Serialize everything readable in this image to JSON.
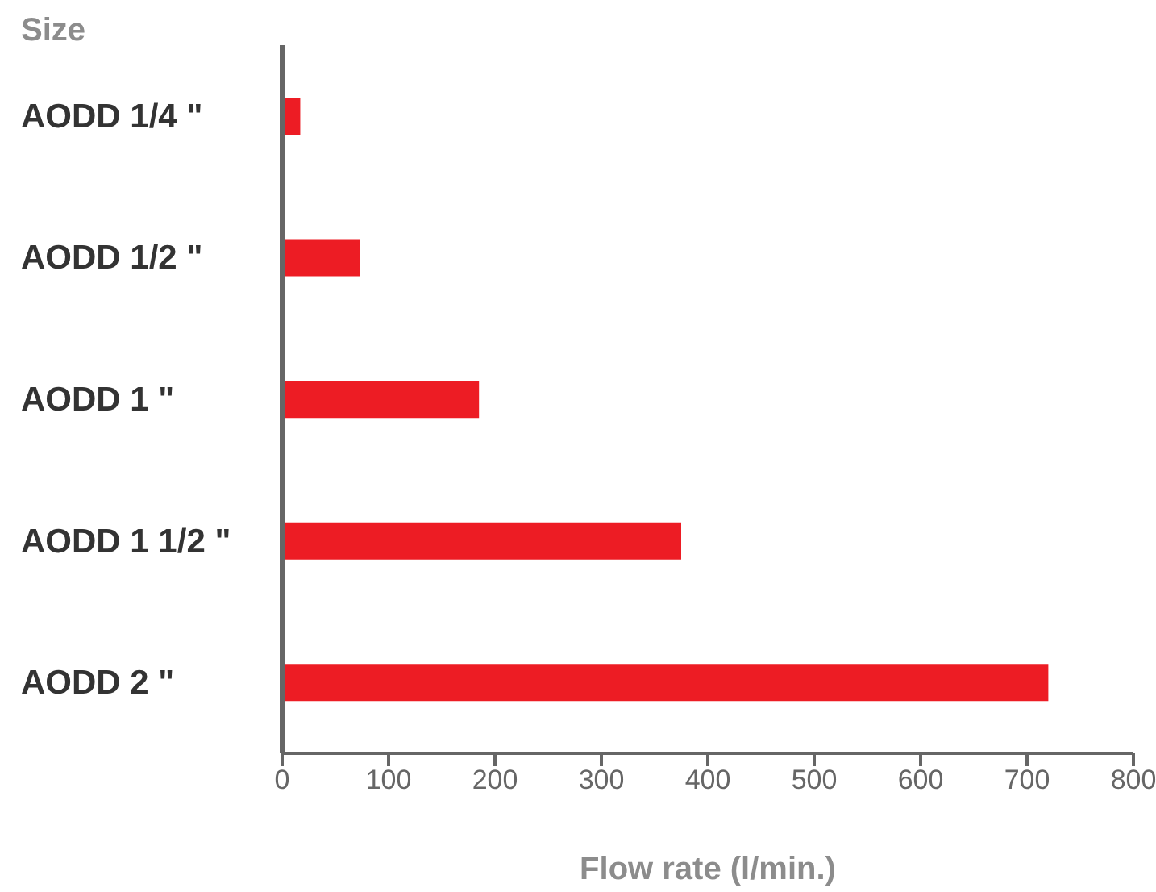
{
  "chart_data": {
    "type": "bar",
    "orientation": "horizontal",
    "ylabel": "Size",
    "xlabel": "Flow rate (l/min.)",
    "categories": [
      "AODD 1/4 \"",
      "AODD 1/2 \"",
      "AODD 1 \"",
      "AODD 1 1/2 \"",
      "AODD 2 \""
    ],
    "values": [
      17,
      73,
      185,
      375,
      720
    ],
    "color": "#ed1c24",
    "xlim": [
      0,
      800
    ],
    "xticks": [
      0,
      100,
      200,
      300,
      400,
      500,
      600,
      700,
      800
    ],
    "grid": false,
    "legend": false
  }
}
